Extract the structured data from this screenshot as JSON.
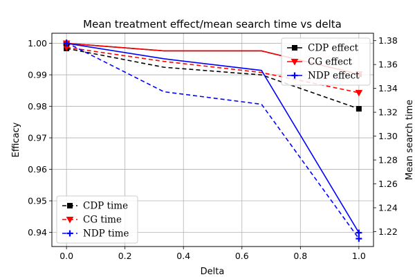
{
  "chart_data": {
    "type": "line",
    "title": "Mean treatment effect/mean search time vs delta",
    "xlabel": "Delta",
    "ylabel_left": "Efficacy",
    "ylabel_right": "Mean search time",
    "xlim": [
      -0.05,
      1.05
    ],
    "ylim_left": [
      0.9355,
      1.0032
    ],
    "ylim_right": [
      1.2075,
      1.3862
    ],
    "x_ticks": [
      "0.0",
      "0.2",
      "0.4",
      "0.6",
      "0.8",
      "1.0"
    ],
    "y_left_ticks": [
      "0.94",
      "0.95",
      "0.96",
      "0.97",
      "0.98",
      "0.99",
      "1.00"
    ],
    "y_right_ticks": [
      "1.22",
      "1.24",
      "1.26",
      "1.28",
      "1.30",
      "1.32",
      "1.34",
      "1.36",
      "1.38"
    ],
    "grid": true,
    "series_effect": [
      {
        "name": "CDP effect",
        "color": "#000000",
        "marker": "square",
        "x": [
          0.0,
          0.333,
          0.667,
          1.0
        ],
        "y": [
          1.0,
          0.9976,
          0.9976,
          0.9902
        ]
      },
      {
        "name": "CG effect",
        "color": "#ff0000",
        "marker": "triangle-down",
        "x": [
          0.0,
          0.333,
          0.667,
          1.0
        ],
        "y": [
          1.0,
          0.9976,
          0.9976,
          0.9902
        ]
      },
      {
        "name": "NDP effect",
        "color": "#0000ff",
        "marker": "plus",
        "x": [
          0.0,
          0.333,
          0.667,
          1.0
        ],
        "y": [
          1.0,
          0.9951,
          0.9914,
          0.9399
        ]
      }
    ],
    "series_time": [
      {
        "name": "CDP time",
        "color": "#000000",
        "marker": "square",
        "x": [
          0.0,
          0.333,
          0.667,
          1.0
        ],
        "y": [
          1.3735,
          1.3577,
          1.3513,
          1.3229
        ]
      },
      {
        "name": "CG time",
        "color": "#ff0000",
        "marker": "triangle-down",
        "x": [
          0.0,
          0.333,
          0.667,
          1.0
        ],
        "y": [
          1.3744,
          1.3626,
          1.3533,
          1.3364
        ]
      },
      {
        "name": "NDP time",
        "color": "#0000ff",
        "marker": "plus",
        "x": [
          0.0,
          0.333,
          0.667,
          1.0
        ],
        "y": [
          1.3783,
          1.3372,
          1.3267,
          1.2141
        ]
      }
    ],
    "legend_effect_position": "upper-right",
    "legend_time_position": "lower-left"
  }
}
